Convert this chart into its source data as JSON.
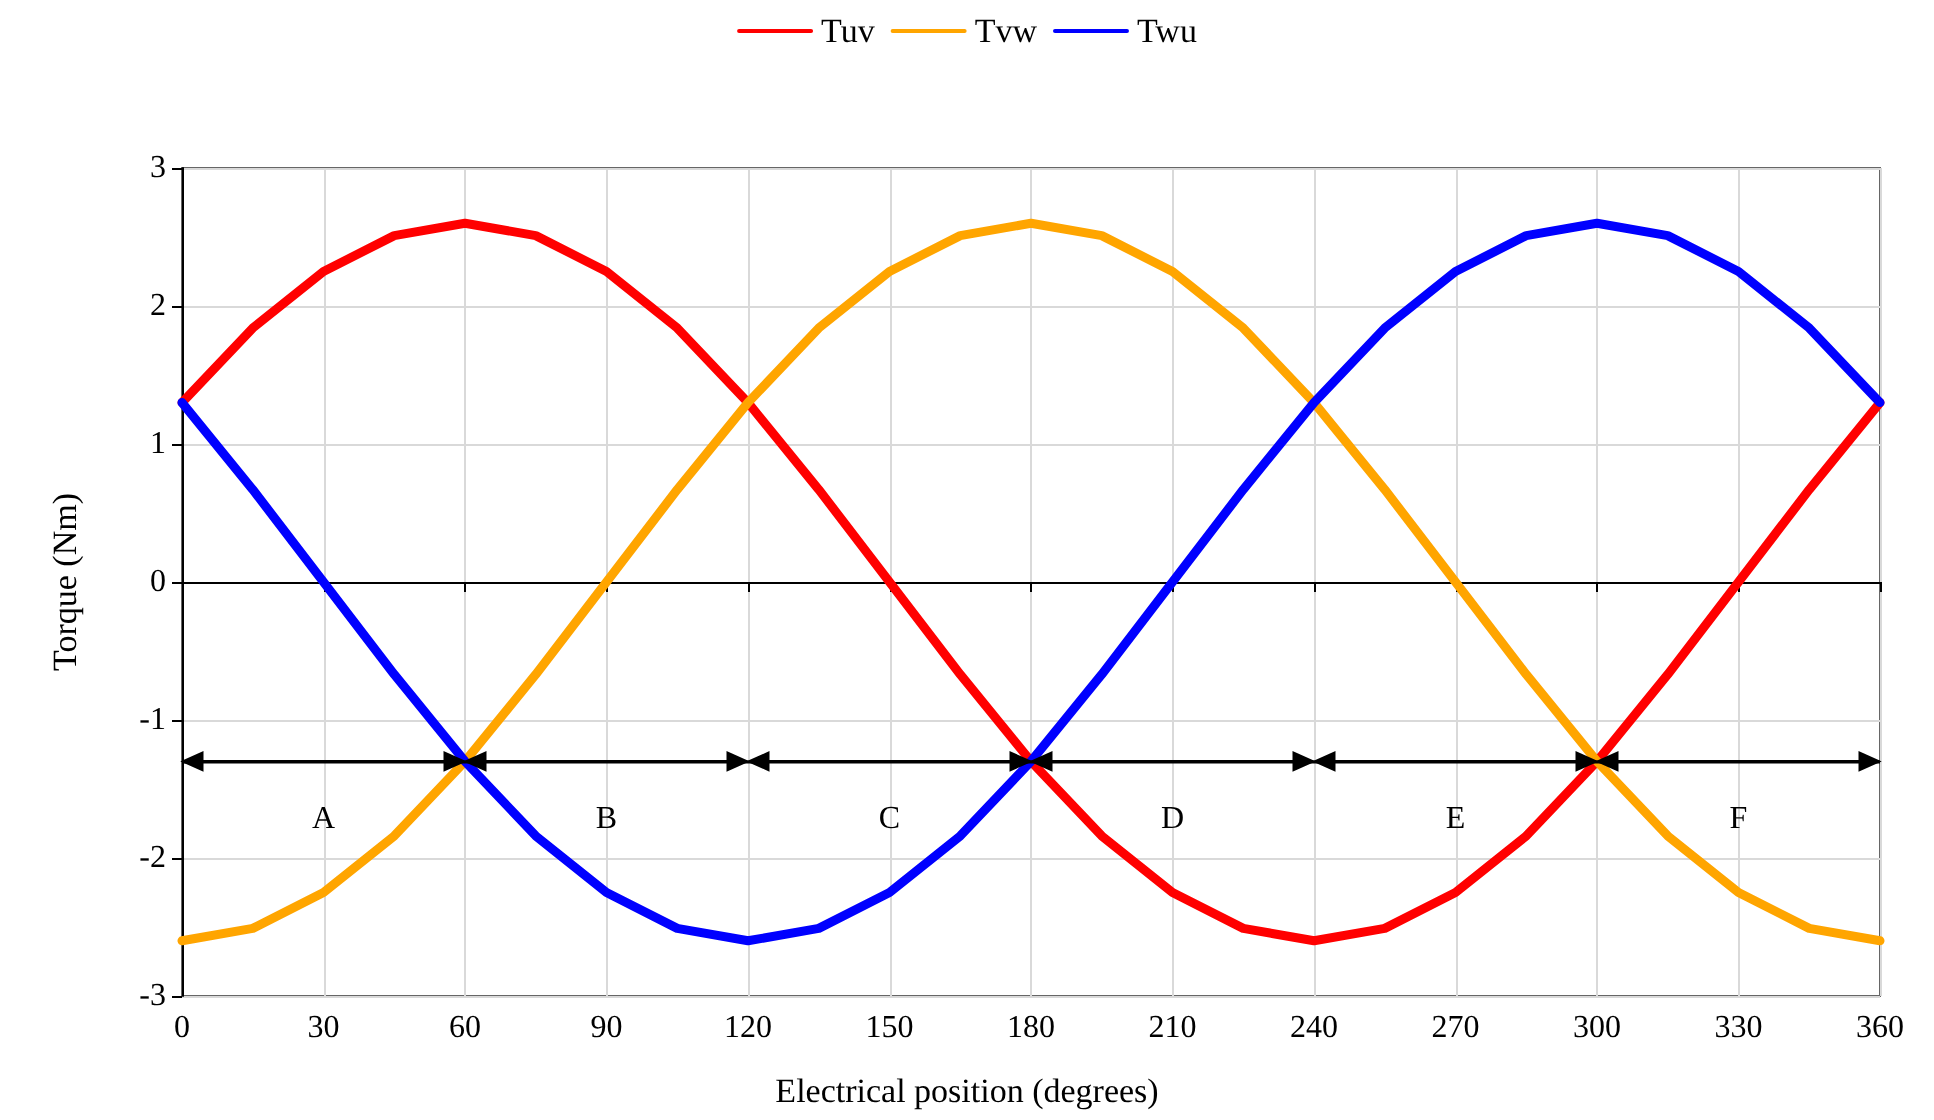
{
  "chart_data": {
    "type": "line",
    "xlabel": "Electrical position (degrees)",
    "ylabel": "Torque (Nm)",
    "x": [
      0,
      15,
      30,
      45,
      60,
      75,
      90,
      105,
      120,
      135,
      150,
      165,
      180,
      195,
      210,
      225,
      240,
      255,
      270,
      285,
      300,
      315,
      330,
      345,
      360
    ],
    "series": [
      {
        "name": "Tuv",
        "color": "#ff0000",
        "values": [
          1.3,
          1.84,
          2.25,
          2.51,
          2.6,
          2.51,
          2.25,
          1.84,
          1.3,
          0.67,
          0,
          -0.67,
          -1.3,
          -1.84,
          -2.25,
          -2.51,
          -2.6,
          -2.51,
          -2.25,
          -1.84,
          -1.3,
          -0.67,
          0,
          0.67,
          1.3
        ]
      },
      {
        "name": "Tvw",
        "color": "#ffa500",
        "values": [
          -2.6,
          -2.51,
          -2.25,
          -1.84,
          -1.3,
          -0.67,
          0,
          0.67,
          1.3,
          1.84,
          2.25,
          2.51,
          2.6,
          2.51,
          2.25,
          1.84,
          1.3,
          0.67,
          0,
          -0.67,
          -1.3,
          -1.84,
          -2.25,
          -2.51,
          -2.6
        ]
      },
      {
        "name": "Twu",
        "color": "#0000ff",
        "values": [
          1.3,
          0.67,
          0,
          -0.67,
          -1.3,
          -1.84,
          -2.25,
          -2.51,
          -2.6,
          -2.51,
          -2.25,
          -1.84,
          -1.3,
          -0.67,
          0,
          0.67,
          1.3,
          1.84,
          2.25,
          2.51,
          2.6,
          2.51,
          2.25,
          1.84,
          1.3
        ]
      }
    ],
    "xlim": [
      0,
      360
    ],
    "xticks": [
      0,
      30,
      60,
      90,
      120,
      150,
      180,
      210,
      240,
      270,
      300,
      330,
      360
    ],
    "ylim": [
      -3,
      3
    ],
    "yticks": [
      -3,
      -2,
      -1,
      0,
      1,
      2,
      3
    ],
    "ref_lines": [
      {
        "axis": "y",
        "value": -1.3
      }
    ],
    "annotations": [
      "A",
      "B",
      "C",
      "D",
      "E",
      "F"
    ],
    "legend": "top",
    "grid": true,
    "marker": "none",
    "line_style": "solid"
  }
}
